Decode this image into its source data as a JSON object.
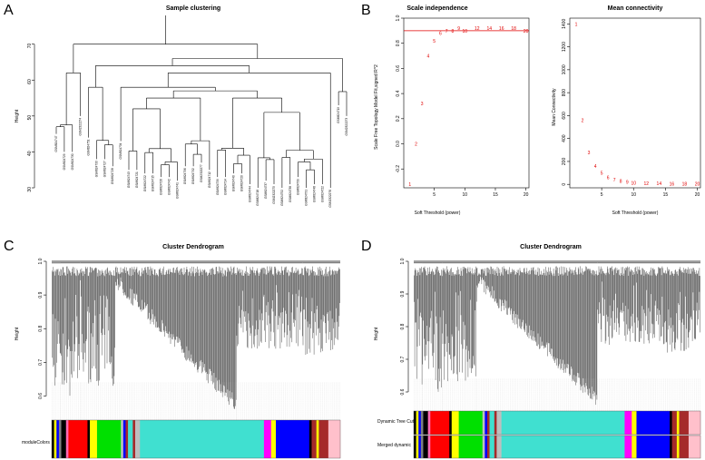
{
  "panels": {
    "A": "A",
    "B": "B",
    "C": "C",
    "D": "D"
  },
  "chart_data": [
    {
      "id": "A",
      "type": "dendrogram",
      "title": "Sample clustering",
      "ylabel": "Height",
      "xlabel": "",
      "yticks": [
        30,
        40,
        50,
        60,
        70
      ],
      "ylim": [
        30,
        78
      ],
      "samples": [
        "GSM824747",
        "GSM824729",
        "GSM824730",
        "GSM2322274",
        "GSM824751",
        "GSM824733",
        "GSM824727",
        "GSM824728",
        "GSM824734",
        "GSM824743",
        "GSM824721",
        "GSM824722",
        "GSM824715",
        "GSM824726",
        "GSM824742",
        "GSM824741",
        "GSM824756",
        "GSM824732",
        "GSM2322277",
        "GSM824712",
        "GSM824739",
        "GSM824714",
        "GSM824740",
        "GSM824720",
        "GSM824744",
        "GSM824718",
        "GSM824737",
        "GSM2322275",
        "GSM824752",
        "GSM824738",
        "GSM824739",
        "GSM824731",
        "GSM824748",
        "GSM824722",
        "GSM2322276",
        "GSM824719",
        "GSM2322273"
      ]
    },
    {
      "id": "B1",
      "type": "scatter",
      "title": "Scale independence",
      "xlabel": "Soft Threshold (power)",
      "ylabel": "Scale Free Topology Model Fit,signed R^2",
      "xticks": [
        5,
        10,
        15,
        20
      ],
      "yticks": [
        -0.2,
        0.0,
        0.2,
        0.4,
        0.6,
        0.8,
        1.0
      ],
      "xlim": [
        0,
        20.5
      ],
      "ylim": [
        -0.35,
        1.0
      ],
      "hline": 0.9,
      "points": [
        {
          "x": 1,
          "y": -0.32,
          "label": "1"
        },
        {
          "x": 2,
          "y": 0.0,
          "label": "2"
        },
        {
          "x": 3,
          "y": 0.32,
          "label": "3"
        },
        {
          "x": 4,
          "y": 0.7,
          "label": "4"
        },
        {
          "x": 5,
          "y": 0.82,
          "label": "5"
        },
        {
          "x": 6,
          "y": 0.88,
          "label": "6"
        },
        {
          "x": 7,
          "y": 0.9,
          "label": "7"
        },
        {
          "x": 8,
          "y": 0.9,
          "label": "8"
        },
        {
          "x": 9,
          "y": 0.92,
          "label": "9"
        },
        {
          "x": 10,
          "y": 0.9,
          "label": "10"
        },
        {
          "x": 12,
          "y": 0.92,
          "label": "12"
        },
        {
          "x": 14,
          "y": 0.92,
          "label": "14"
        },
        {
          "x": 16,
          "y": 0.92,
          "label": "16"
        },
        {
          "x": 18,
          "y": 0.92,
          "label": "18"
        },
        {
          "x": 20,
          "y": 0.9,
          "label": "20"
        }
      ]
    },
    {
      "id": "B2",
      "type": "scatter",
      "title": "Mean connectivity",
      "xlabel": "Soft Threshold (power)",
      "ylabel": "Mean Connectivity",
      "xticks": [
        5,
        10,
        15,
        20
      ],
      "yticks": [
        0,
        200,
        400,
        600,
        800,
        1000,
        1200,
        1400
      ],
      "xlim": [
        0,
        20.5
      ],
      "ylim": [
        -30,
        1450
      ],
      "points": [
        {
          "x": 1,
          "y": 1400,
          "label": "1"
        },
        {
          "x": 2,
          "y": 560,
          "label": "2"
        },
        {
          "x": 3,
          "y": 280,
          "label": "3"
        },
        {
          "x": 4,
          "y": 160,
          "label": "4"
        },
        {
          "x": 5,
          "y": 100,
          "label": "5"
        },
        {
          "x": 6,
          "y": 60,
          "label": "6"
        },
        {
          "x": 7,
          "y": 40,
          "label": "7"
        },
        {
          "x": 8,
          "y": 30,
          "label": "8"
        },
        {
          "x": 9,
          "y": 20,
          "label": "9"
        },
        {
          "x": 10,
          "y": 15,
          "label": "10"
        },
        {
          "x": 12,
          "y": 10,
          "label": "12"
        },
        {
          "x": 14,
          "y": 8,
          "label": "14"
        },
        {
          "x": 16,
          "y": 6,
          "label": "16"
        },
        {
          "x": 18,
          "y": 5,
          "label": "18"
        },
        {
          "x": 20,
          "y": 4,
          "label": "20"
        }
      ]
    },
    {
      "id": "C",
      "type": "dendrogram",
      "title": "Cluster Dendrogram",
      "ylabel": "Height",
      "yticks": [
        0.6,
        0.7,
        0.8,
        0.9,
        1.0
      ],
      "ylim": [
        0.55,
        1.0
      ],
      "color_rows": [
        "moduleColors"
      ],
      "modules": [
        {
          "color": "#000000",
          "width": 1
        },
        {
          "color": "#ffff00",
          "width": 1
        },
        {
          "color": "#0000ff",
          "width": 1
        },
        {
          "color": "#808080",
          "width": 1
        },
        {
          "color": "#000000",
          "width": 2
        },
        {
          "color": "#ff69b4",
          "width": 1
        },
        {
          "color": "#ff0000",
          "width": 8
        },
        {
          "color": "#000000",
          "width": 1
        },
        {
          "color": "#ffff00",
          "width": 3
        },
        {
          "color": "#00e000",
          "width": 10
        },
        {
          "color": "#bebebe",
          "width": 1
        },
        {
          "color": "#0000ff",
          "width": 1
        },
        {
          "color": "#a52a2a",
          "width": 1
        },
        {
          "color": "#40e0d0",
          "width": 2
        },
        {
          "color": "#a52a2a",
          "width": 1
        },
        {
          "color": "#bebebe",
          "width": 2
        },
        {
          "color": "#40e0d0",
          "width": 52
        },
        {
          "color": "#ff00ff",
          "width": 3
        },
        {
          "color": "#ffff00",
          "width": 2
        },
        {
          "color": "#0000ff",
          "width": 14
        },
        {
          "color": "#000000",
          "width": 1
        },
        {
          "color": "#a52a2a",
          "width": 2
        },
        {
          "color": "#ffff00",
          "width": 1
        },
        {
          "color": "#a52a2a",
          "width": 4
        },
        {
          "color": "#ffc0cb",
          "width": 5
        }
      ]
    },
    {
      "id": "D",
      "type": "dendrogram",
      "title": "Cluster Dendrogram",
      "ylabel": "Height",
      "yticks": [
        0.6,
        0.7,
        0.8,
        0.9,
        1.0
      ],
      "ylim": [
        0.55,
        1.0
      ],
      "color_rows": [
        "Dynamic Tree Cut",
        "Merged dynamic"
      ],
      "modules": [
        {
          "color": "#000000",
          "width": 1
        },
        {
          "color": "#ffff00",
          "width": 1
        },
        {
          "color": "#0000ff",
          "width": 1
        },
        {
          "color": "#808080",
          "width": 1
        },
        {
          "color": "#000000",
          "width": 2
        },
        {
          "color": "#ff69b4",
          "width": 1
        },
        {
          "color": "#ff0000",
          "width": 8
        },
        {
          "color": "#000000",
          "width": 1
        },
        {
          "color": "#ffff00",
          "width": 3
        },
        {
          "color": "#00e000",
          "width": 10
        },
        {
          "color": "#bebebe",
          "width": 1
        },
        {
          "color": "#0000ff",
          "width": 1
        },
        {
          "color": "#a52a2a",
          "width": 1
        },
        {
          "color": "#40e0d0",
          "width": 2
        },
        {
          "color": "#a52a2a",
          "width": 1
        },
        {
          "color": "#bebebe",
          "width": 2
        },
        {
          "color": "#40e0d0",
          "width": 52
        },
        {
          "color": "#ff00ff",
          "width": 3
        },
        {
          "color": "#ffff00",
          "width": 2
        },
        {
          "color": "#0000ff",
          "width": 14
        },
        {
          "color": "#000000",
          "width": 1
        },
        {
          "color": "#a52a2a",
          "width": 2
        },
        {
          "color": "#ffff00",
          "width": 1
        },
        {
          "color": "#a52a2a",
          "width": 4
        },
        {
          "color": "#ffc0cb",
          "width": 5
        }
      ]
    }
  ]
}
